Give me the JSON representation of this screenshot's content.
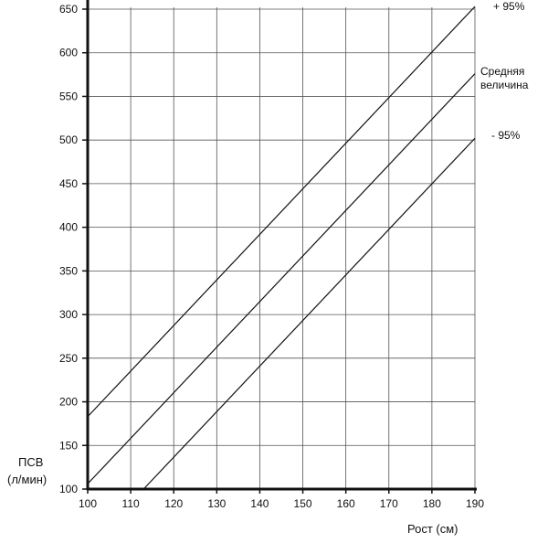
{
  "chart_data": {
    "type": "line",
    "xlabel": "Рост (см)",
    "ylabel": [
      "ПСВ",
      "(л/мин)"
    ],
    "xlim": [
      100,
      190
    ],
    "ylim": [
      100,
      650
    ],
    "x_ticks": [
      100,
      110,
      120,
      130,
      140,
      150,
      160,
      170,
      180,
      190
    ],
    "y_ticks": [
      100,
      150,
      200,
      250,
      300,
      350,
      400,
      450,
      500,
      550,
      600,
      650
    ],
    "grid": true,
    "series": [
      {
        "name": "+ 95%",
        "x": [
          100,
          190
        ],
        "y": [
          183,
          653
        ]
      },
      {
        "name": "Средняя величина",
        "x": [
          100,
          190
        ],
        "y": [
          106,
          576
        ]
      },
      {
        "name": "- 95%",
        "x": [
          113,
          190
        ],
        "y": [
          100,
          502
        ]
      }
    ],
    "line_color": "#111111",
    "grid_color": "#555555"
  }
}
